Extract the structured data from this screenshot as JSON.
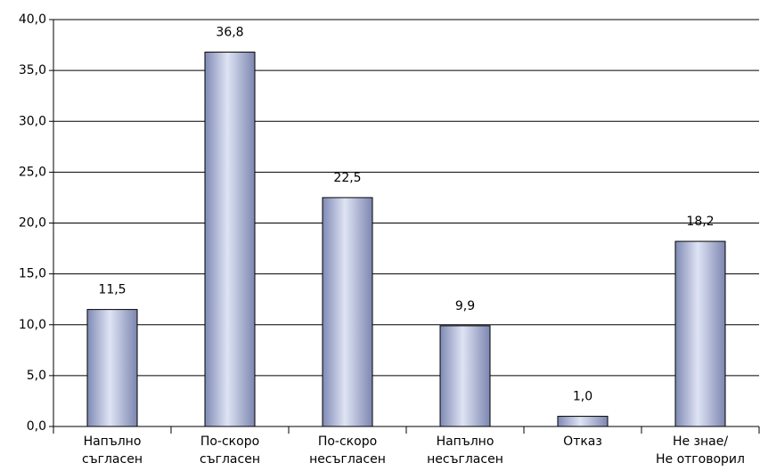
{
  "chart_data": {
    "type": "bar",
    "categories": [
      [
        "Напълно",
        "съгласен"
      ],
      [
        "По-скоро",
        "съгласен"
      ],
      [
        "По-скоро",
        "несъгласен"
      ],
      [
        "Напълно",
        "несъгласен"
      ],
      [
        "Отказ"
      ],
      [
        "Не знае/",
        "Не отговорил"
      ]
    ],
    "values": [
      11.5,
      36.8,
      22.5,
      9.9,
      1.0,
      18.2
    ],
    "value_labels": [
      "11,5",
      "36,8",
      "22,5",
      "9,9",
      "1,0",
      "18,2"
    ],
    "color": "#a9b4d6",
    "ylim": [
      0,
      40
    ],
    "yticks": [
      {
        "value": 0,
        "label": "0,0"
      },
      {
        "value": 5,
        "label": "5,0"
      },
      {
        "value": 10,
        "label": "10,0"
      },
      {
        "value": 15,
        "label": "15,0"
      },
      {
        "value": 20,
        "label": "20,0"
      },
      {
        "value": 25,
        "label": "25,0"
      },
      {
        "value": 30,
        "label": "30,0"
      },
      {
        "value": 35,
        "label": "35,0"
      },
      {
        "value": 40,
        "label": "40,0"
      }
    ],
    "grid": true
  }
}
